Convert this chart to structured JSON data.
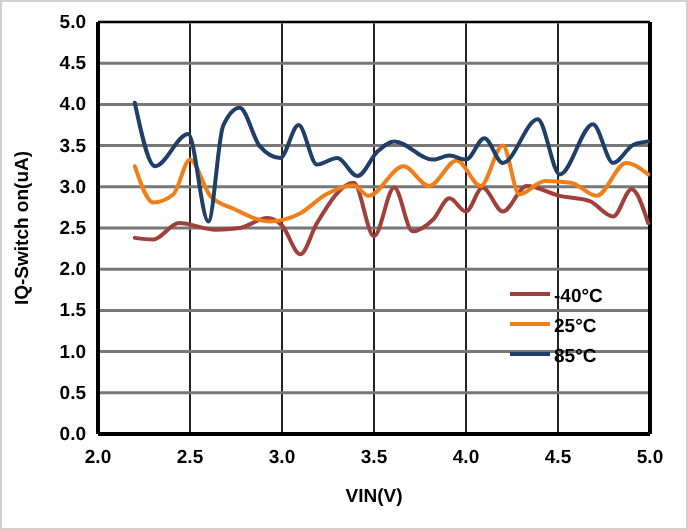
{
  "chart_data": {
    "type": "line",
    "xlabel": "VIN(V)",
    "ylabel": "IQ-Switch on(uA)",
    "xlim": [
      2.0,
      5.0
    ],
    "ylim": [
      0.0,
      5.0
    ],
    "xticks": [
      {
        "value": 2,
        "label": "2.0"
      },
      {
        "value": 2.5,
        "label": "2.5"
      },
      {
        "value": 3,
        "label": "3.0"
      },
      {
        "value": 3.5,
        "label": "3.5"
      },
      {
        "value": 4,
        "label": "4.0"
      },
      {
        "value": 4.5,
        "label": "4.5"
      },
      {
        "value": 5,
        "label": "5.0"
      }
    ],
    "yticks": [
      {
        "value": 0,
        "label": "0.0"
      },
      {
        "value": 0.5,
        "label": "0.5"
      },
      {
        "value": 1,
        "label": "1.0"
      },
      {
        "value": 1.5,
        "label": "1.5"
      },
      {
        "value": 2,
        "label": "2.0"
      },
      {
        "value": 2.5,
        "label": "2.5"
      },
      {
        "value": 3,
        "label": "3.0"
      },
      {
        "value": 3.5,
        "label": "3.5"
      },
      {
        "value": 4,
        "label": "4.0"
      },
      {
        "value": 4.5,
        "label": "4.5"
      },
      {
        "value": 5,
        "label": "5.0"
      }
    ],
    "grid": true,
    "legend": "bottom right",
    "line_style": "solid",
    "marker": "none",
    "series": [
      {
        "name": "-40°C",
        "color": "#a0403a",
        "x": [
          2.2,
          2.3,
          2.44,
          2.64,
          2.77,
          2.92,
          3.0,
          3.1,
          3.19,
          3.39,
          3.5,
          3.61,
          3.71,
          3.82,
          3.91,
          4.0,
          4.09,
          4.2,
          4.33,
          4.51,
          4.67,
          4.8,
          4.9,
          4.99
        ],
        "values": [
          2.38,
          2.36,
          2.56,
          2.48,
          2.5,
          2.62,
          2.53,
          2.18,
          2.56,
          3.05,
          2.4,
          2.99,
          2.46,
          2.6,
          2.86,
          2.7,
          2.99,
          2.7,
          3.01,
          2.89,
          2.83,
          2.64,
          2.97,
          2.56
        ]
      },
      {
        "name": "25°C",
        "color": "#f07f1a",
        "x": [
          2.2,
          2.3,
          2.41,
          2.5,
          2.61,
          2.74,
          2.93,
          3.1,
          3.24,
          3.39,
          3.47,
          3.66,
          3.8,
          3.95,
          4.08,
          4.2,
          4.29,
          4.43,
          4.57,
          4.71,
          4.87,
          4.99
        ],
        "values": [
          3.25,
          2.81,
          2.91,
          3.33,
          2.89,
          2.73,
          2.58,
          2.68,
          2.91,
          3.02,
          2.89,
          3.25,
          3.01,
          3.32,
          3.01,
          3.5,
          2.91,
          3.07,
          3.05,
          2.89,
          3.29,
          3.15
        ]
      },
      {
        "name": "85°C",
        "color": "#1f3f68",
        "x": [
          2.2,
          2.31,
          2.49,
          2.6,
          2.68,
          2.77,
          2.88,
          2.99,
          3.09,
          3.19,
          3.3,
          3.41,
          3.52,
          3.61,
          3.82,
          3.91,
          4.0,
          4.1,
          4.2,
          4.39,
          4.51,
          4.69,
          4.8,
          4.91,
          4.99
        ],
        "values": [
          4.02,
          3.25,
          3.64,
          2.58,
          3.74,
          3.96,
          3.49,
          3.35,
          3.75,
          3.27,
          3.35,
          3.13,
          3.43,
          3.55,
          3.33,
          3.38,
          3.33,
          3.59,
          3.29,
          3.82,
          3.15,
          3.76,
          3.29,
          3.51,
          3.55
        ]
      }
    ]
  }
}
